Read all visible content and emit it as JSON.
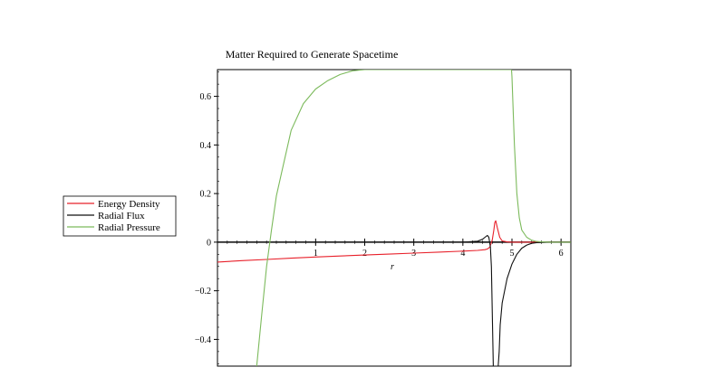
{
  "chart_data": {
    "type": "line",
    "title": "Matter Required to Generate Spacetime",
    "xlabel": "r",
    "ylabel": "",
    "xlim": [
      -1.0,
      6.2
    ],
    "ylim": [
      -0.51,
      0.71
    ],
    "x_ticks": [
      {
        "value": 1,
        "label": "1"
      },
      {
        "value": 2,
        "label": "2"
      },
      {
        "value": 3,
        "label": "3"
      },
      {
        "value": 4,
        "label": "4"
      },
      {
        "value": 5,
        "label": "5"
      },
      {
        "value": 6,
        "label": "6"
      }
    ],
    "y_ticks": [
      {
        "value": 0.6,
        "label": "0.6"
      },
      {
        "value": 0.4,
        "label": "0.4"
      },
      {
        "value": 0.2,
        "label": "0.2"
      },
      {
        "value": 0,
        "label": "0"
      },
      {
        "value": -0.2,
        "label": "−0.2"
      },
      {
        "value": -0.4,
        "label": "−0.4"
      }
    ],
    "grid": false,
    "legend_position": "left",
    "series": [
      {
        "name": "Energy Density",
        "color": "#e8202a",
        "x": [
          -1.0,
          -0.5,
          0,
          0.5,
          1.0,
          1.5,
          2.0,
          2.5,
          3.0,
          3.5,
          4.0,
          4.3,
          4.45,
          4.5,
          4.55,
          4.6,
          4.63,
          4.65,
          4.67,
          4.7,
          4.75,
          4.8,
          4.9,
          5.0,
          5.2,
          5.5,
          6.0,
          6.2
        ],
        "y": [
          -0.082,
          -0.076,
          -0.071,
          -0.066,
          -0.061,
          -0.057,
          -0.053,
          -0.049,
          -0.045,
          -0.041,
          -0.037,
          -0.034,
          -0.031,
          -0.028,
          -0.02,
          0.01,
          0.05,
          0.08,
          0.088,
          0.06,
          0.02,
          0.005,
          0.001,
          0.0,
          0.0,
          0.0,
          0.0,
          0.0
        ]
      },
      {
        "name": "Radial Flux",
        "color": "#111111",
        "x": [
          -1.0,
          0,
          1.0,
          2.0,
          3.0,
          4.0,
          4.3,
          4.4,
          4.45,
          4.5,
          4.53,
          4.56,
          4.58,
          4.62,
          4.72,
          4.74,
          4.76,
          4.8,
          4.9,
          5.0,
          5.1,
          5.2,
          5.3,
          5.4,
          5.5,
          5.7,
          6.0,
          6.2
        ],
        "y": [
          0,
          0,
          0,
          0,
          0,
          0.0,
          0.004,
          0.012,
          0.02,
          0.028,
          0.02,
          -0.02,
          -0.1,
          -0.51,
          -0.51,
          -0.45,
          -0.34,
          -0.25,
          -0.15,
          -0.09,
          -0.05,
          -0.025,
          -0.012,
          -0.005,
          -0.002,
          0.0,
          0.0,
          0.0
        ]
      },
      {
        "name": "Radial Pressure",
        "color": "#7cba5c",
        "x": [
          -0.2,
          -0.1,
          0.0,
          0.1,
          0.2,
          0.3,
          0.5,
          0.75,
          1.0,
          1.25,
          1.5,
          1.75,
          2.0,
          4.99,
          5.0,
          5.05,
          5.1,
          5.15,
          5.2,
          5.3,
          5.4,
          5.5,
          5.6,
          5.8,
          6.0,
          6.2
        ],
        "y": [
          -0.51,
          -0.3,
          -0.1,
          0.05,
          0.19,
          0.28,
          0.46,
          0.57,
          0.63,
          0.665,
          0.69,
          0.705,
          0.71,
          0.71,
          0.68,
          0.4,
          0.2,
          0.1,
          0.05,
          0.02,
          0.008,
          0.003,
          0.001,
          0.0,
          0.0,
          0.0
        ]
      }
    ]
  }
}
